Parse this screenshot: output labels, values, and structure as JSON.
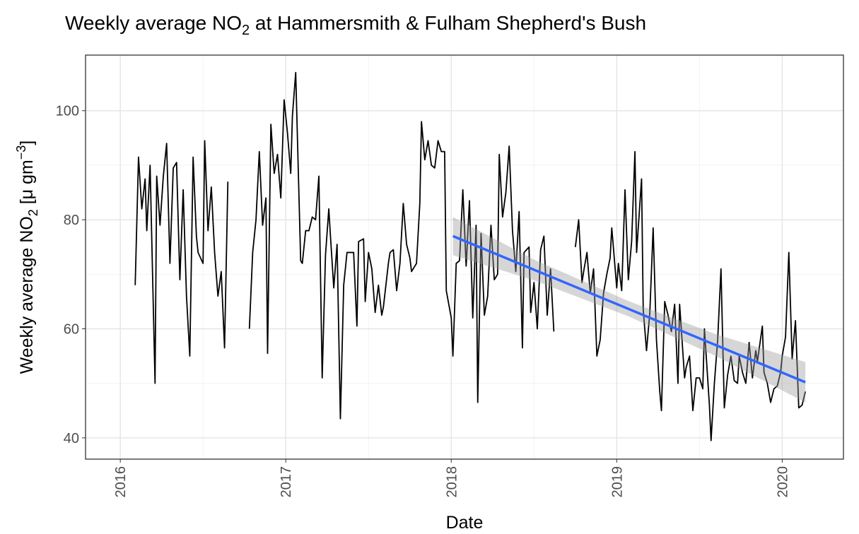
{
  "chart_data": {
    "type": "line",
    "title": [
      "Weekly average NO",
      "2",
      " at Hammersmith & Fulham Shepherd's Bush"
    ],
    "x_label": "Date",
    "y_label": [
      "Weekly average NO",
      "2",
      " [μ gm",
      "−3",
      "]"
    ],
    "xlim": [
      2015.79,
      2020.37
    ],
    "xticks": [
      2016,
      2017,
      2018,
      2019,
      2020
    ],
    "ylim": [
      36.1,
      110.2
    ],
    "yticks": [
      40,
      60,
      80,
      100
    ],
    "grid": true,
    "series": [
      {
        "color": "#000000",
        "x": [
          2016.09,
          2016.11,
          2016.13,
          2016.15,
          2016.16,
          2016.18,
          2016.21,
          2016.22,
          2016.24,
          2016.26,
          2016.28,
          2016.3,
          2016.32,
          2016.34,
          2016.36,
          2016.38,
          2016.4,
          2016.42,
          2016.44,
          2016.46,
          2016.47,
          2016.5,
          2016.51,
          2016.53,
          2016.55,
          2016.57,
          2016.59,
          2016.61,
          2016.63,
          2016.65,
          2016.73,
          2016.78,
          2016.8,
          2016.82,
          2016.84,
          2016.86,
          2016.88,
          2016.89,
          2016.91,
          2016.93,
          2016.95,
          2016.97,
          2016.99,
          2017.01,
          2017.03,
          2017.04,
          2017.06,
          2017.09,
          2017.1,
          2017.12,
          2017.14,
          2017.16,
          2017.18,
          2017.2,
          2017.22,
          2017.24,
          2017.26,
          2017.27,
          2017.29,
          2017.31,
          2017.33,
          2017.35,
          2017.37,
          2017.39,
          2017.41,
          2017.43,
          2017.44,
          2017.47,
          2017.48,
          2017.5,
          2017.52,
          2017.54,
          2017.56,
          2017.58,
          2017.59,
          2017.62,
          2017.63,
          2017.65,
          2017.67,
          2017.69,
          2017.71,
          2017.73,
          2017.75,
          2017.76,
          2017.79,
          2017.81,
          2017.82,
          2017.84,
          2017.86,
          2017.88,
          2017.9,
          2017.92,
          2017.94,
          2017.96,
          2017.97,
          2018.0,
          2018.01,
          2018.03,
          2018.05,
          2018.07,
          2018.09,
          2018.11,
          2018.13,
          2018.15,
          2018.16,
          2018.18,
          2018.2,
          2018.22,
          2018.24,
          2018.26,
          2018.28,
          2018.29,
          2018.31,
          2018.33,
          2018.35,
          2018.37,
          2018.39,
          2018.41,
          2018.43,
          2018.44,
          2018.47,
          2018.48,
          2018.5,
          2018.52,
          2018.54,
          2018.56,
          2018.58,
          2018.6,
          2018.62,
          2018.68,
          2018.75,
          2018.77,
          2018.79,
          2018.8,
          2018.82,
          2018.84,
          2018.86,
          2018.88,
          2018.9,
          2018.92,
          2018.94,
          2018.96,
          2018.97,
          2019.0,
          2019.01,
          2019.03,
          2019.05,
          2019.07,
          2019.09,
          2019.11,
          2019.12,
          2019.15,
          2019.16,
          2019.18,
          2019.2,
          2019.22,
          2019.24,
          2019.26,
          2019.27,
          2019.29,
          2019.31,
          2019.33,
          2019.35,
          2019.37,
          2019.38,
          2019.41,
          2019.42,
          2019.44,
          2019.46,
          2019.48,
          2019.5,
          2019.52,
          2019.53,
          2019.56,
          2019.57,
          2019.59,
          2019.61,
          2019.63,
          2019.65,
          2019.67,
          2019.69,
          2019.71,
          2019.73,
          2019.74,
          2019.76,
          2019.78,
          2019.8,
          2019.82,
          2019.84,
          2019.85,
          2019.88,
          2019.89,
          2019.91,
          2019.93,
          2019.95,
          2019.97,
          2019.99,
          2020.0,
          2020.02,
          2020.04,
          2020.06,
          2020.08,
          2020.1,
          2020.12,
          2020.14
        ],
        "values": [
          68,
          91.5,
          82,
          87.5,
          78,
          90,
          50,
          88,
          79,
          88,
          94,
          72,
          89.5,
          90.5,
          69,
          85.5,
          66,
          55,
          91.5,
          77,
          74,
          72,
          94.5,
          78,
          86,
          74,
          66,
          70.5,
          56.5,
          87,
          null,
          60,
          74,
          80,
          92.5,
          79,
          84,
          55.5,
          97.5,
          88.5,
          92,
          84,
          102,
          96,
          88.5,
          99,
          107,
          72.5,
          72,
          78,
          78,
          80.5,
          80,
          88,
          51,
          73.5,
          82,
          77,
          67.5,
          75.5,
          43.5,
          68,
          74,
          74,
          74,
          60.5,
          76,
          76.5,
          65,
          74,
          71,
          63,
          68,
          62.5,
          64,
          72,
          74,
          74.5,
          67,
          72,
          83,
          75.5,
          73,
          70.5,
          72,
          83,
          98,
          91,
          94.5,
          90,
          89.5,
          94.5,
          92.5,
          92.5,
          67,
          62,
          55,
          72,
          72.5,
          85.5,
          71.5,
          83.5,
          62,
          79,
          46.5,
          77.5,
          62.5,
          66,
          79,
          69,
          70,
          92,
          80.5,
          85,
          93.5,
          78,
          70.5,
          81.5,
          56.5,
          74,
          75,
          63,
          68.5,
          60,
          74.5,
          77,
          62.5,
          71,
          59.5,
          null,
          75,
          80,
          68.5,
          70.5,
          74,
          66.5,
          71,
          55,
          58,
          66.5,
          70,
          73,
          78.5,
          67.5,
          72,
          67,
          85.5,
          69,
          76,
          92.5,
          74,
          87.5,
          63.5,
          56,
          63,
          78.5,
          58,
          48.5,
          45,
          65,
          62.5,
          59.5,
          64.5,
          50,
          64.5,
          51,
          53,
          55,
          45,
          51,
          51,
          49,
          60,
          46,
          39.5,
          50,
          58,
          71,
          45.5,
          51.5,
          55,
          50.5,
          50,
          55,
          52,
          50,
          57.5,
          51,
          56,
          54,
          60.5,
          52,
          50,
          46.5,
          49,
          49.5,
          52,
          55,
          58.5,
          74,
          54.5,
          61.5,
          45.5,
          46,
          48.5
        ]
      }
    ],
    "trend": {
      "color": "#3366ff",
      "x": [
        2018.01,
        2020.14
      ],
      "values": [
        77,
        50.2
      ]
    },
    "band": {
      "color": "#999999",
      "x": [
        2018.01,
        2018.5,
        2019.07,
        2019.6,
        2020.14
      ],
      "lower": [
        73.5,
        68.9,
        62.3,
        55.0,
        46.5
      ],
      "upper": [
        80.5,
        72.7,
        65.1,
        59.0,
        53.9
      ]
    }
  }
}
